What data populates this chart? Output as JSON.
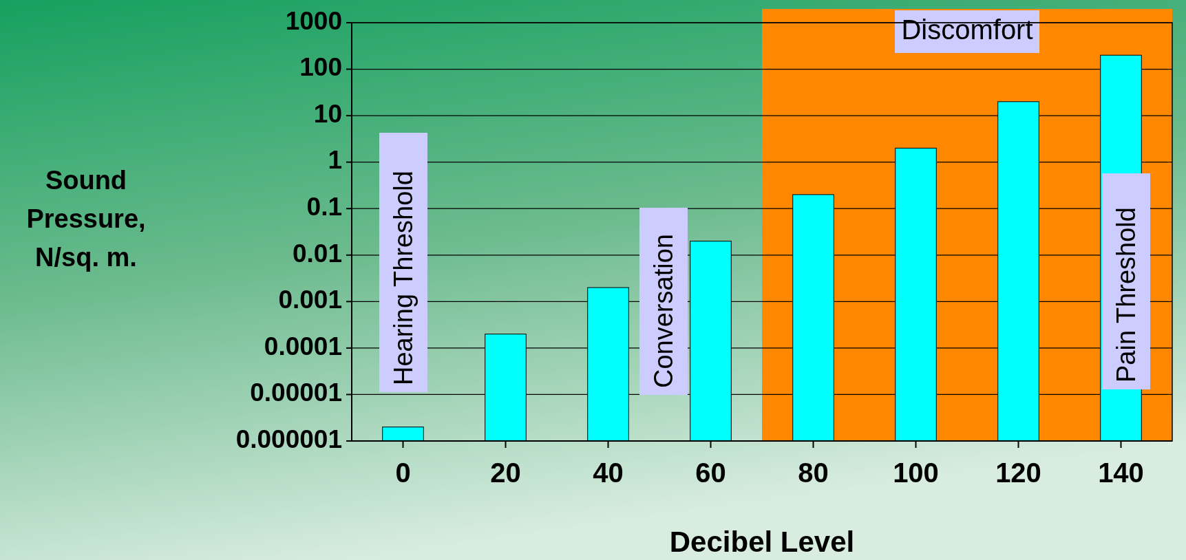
{
  "chart_data": {
    "type": "bar",
    "xlabel": "Decibel Level",
    "ylabel": "Sound Pressure, N/sq. m.",
    "x": [
      0,
      20,
      40,
      60,
      80,
      100,
      120,
      140
    ],
    "values": [
      2e-06,
      0.0002,
      0.002,
      0.02,
      0.2,
      2,
      20,
      200
    ],
    "color": "#00ffff",
    "log": "y",
    "grid": "y",
    "xlim": [
      -10,
      150
    ],
    "xticks": [
      0,
      20,
      40,
      60,
      80,
      100,
      120,
      140
    ],
    "ylim": [
      1e-06,
      1000
    ],
    "yticks": [
      {
        "value": 1e-06,
        "label": "0.000001"
      },
      {
        "value": 1e-05,
        "label": "0.00001"
      },
      0.0001,
      0.001,
      0.01,
      0.1,
      1,
      10,
      100,
      1000
    ],
    "bands": [
      {
        "axis": "x",
        "from": 70,
        "to": 150,
        "label": "Discomfort",
        "color": "#ff8800"
      }
    ],
    "annotations": [
      "Hearing Threshold",
      "Conversation",
      "Pain Threshold"
    ]
  }
}
